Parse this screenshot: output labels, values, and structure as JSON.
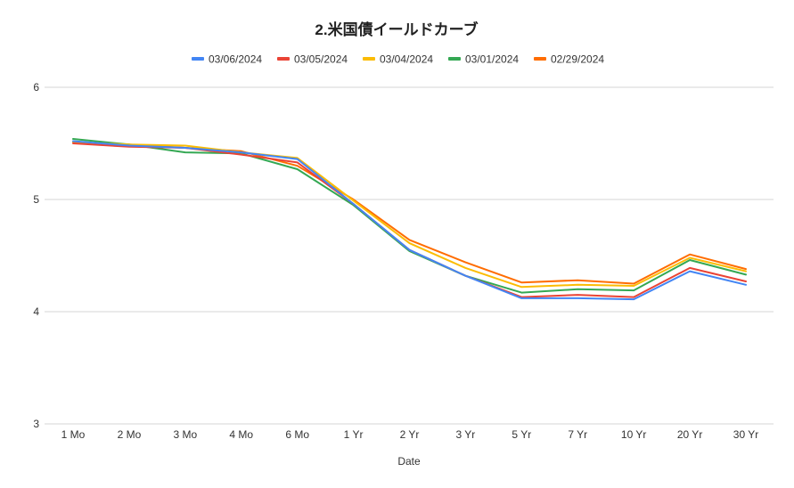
{
  "chart_data": {
    "type": "line",
    "title": "2.米国債イールドカーブ",
    "xlabel": "Date",
    "ylabel": "",
    "ylim": [
      3,
      6
    ],
    "yticks": [
      "3",
      "4",
      "5",
      "6"
    ],
    "grid": true,
    "legend_position": "top",
    "categories": [
      "1 Mo",
      "2 Mo",
      "3 Mo",
      "4 Mo",
      "6 Mo",
      "1 Yr",
      "2 Yr",
      "3 Yr",
      "5 Yr",
      "7 Yr",
      "10 Yr",
      "20 Yr",
      "30 Yr"
    ],
    "series": [
      {
        "name": "03/06/2024",
        "color": "#4285F4",
        "values": [
          5.52,
          5.48,
          5.46,
          5.42,
          5.36,
          4.96,
          4.55,
          4.32,
          4.12,
          4.12,
          4.11,
          4.36,
          4.24
        ]
      },
      {
        "name": "03/05/2024",
        "color": "#EA4335",
        "values": [
          5.5,
          5.47,
          5.46,
          5.4,
          5.33,
          4.96,
          4.55,
          4.32,
          4.13,
          4.15,
          4.13,
          4.39,
          4.27
        ]
      },
      {
        "name": "03/04/2024",
        "color": "#FBBC04",
        "values": [
          5.51,
          5.49,
          5.48,
          5.42,
          5.37,
          4.99,
          4.61,
          4.39,
          4.22,
          4.24,
          4.23,
          4.48,
          4.36
        ]
      },
      {
        "name": "03/01/2024",
        "color": "#34A853",
        "values": [
          5.54,
          5.49,
          5.42,
          5.41,
          5.27,
          4.95,
          4.54,
          4.32,
          4.17,
          4.2,
          4.19,
          4.46,
          4.33
        ]
      },
      {
        "name": "02/29/2024",
        "color": "#FF6D01",
        "values": [
          5.51,
          5.49,
          5.46,
          5.43,
          5.3,
          5.0,
          4.64,
          4.44,
          4.26,
          4.28,
          4.25,
          4.51,
          4.38
        ]
      }
    ]
  }
}
